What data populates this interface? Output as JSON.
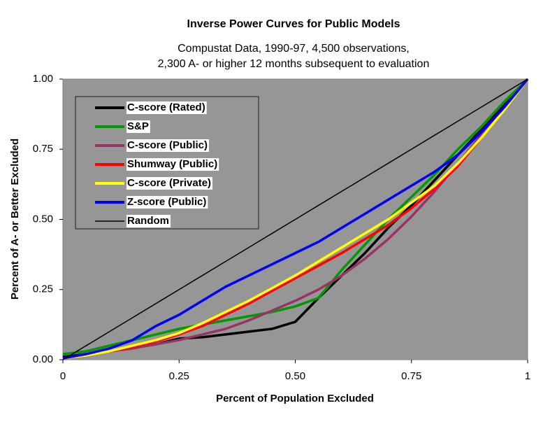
{
  "chart_data": {
    "type": "line",
    "title": "Inverse Power Curves for Public Models",
    "subtitle": [
      "Compustat Data, 1990-97, 4,500 observations,",
      "2,300 A- or higher 12 months subsequent to evaluation"
    ],
    "x_label": "Percent of Population Excluded",
    "y_label": "Percent of A- or Better Excluded",
    "x": [
      0,
      0.05,
      0.1,
      0.15,
      0.2,
      0.25,
      0.3,
      0.35,
      0.4,
      0.45,
      0.5,
      0.55,
      0.6,
      0.65,
      0.7,
      0.75,
      0.8,
      0.85,
      0.9,
      0.95,
      1
    ],
    "series": [
      {
        "name": "C-score (Rated)",
        "color": "#000000",
        "values": [
          0.01,
          0.02,
          0.03,
          0.045,
          0.055,
          0.075,
          0.08,
          0.09,
          0.1,
          0.11,
          0.135,
          0.22,
          0.3,
          0.38,
          0.47,
          0.55,
          0.64,
          0.73,
          0.82,
          0.91,
          1
        ]
      },
      {
        "name": "S&P",
        "color": "#009900",
        "values": [
          0.02,
          0.03,
          0.05,
          0.07,
          0.09,
          0.11,
          0.125,
          0.14,
          0.155,
          0.17,
          0.19,
          0.22,
          0.32,
          0.41,
          0.5,
          0.58,
          0.66,
          0.75,
          0.83,
          0.92,
          1
        ]
      },
      {
        "name": "C-score (Public)",
        "color": "#993366",
        "values": [
          0.005,
          0.015,
          0.03,
          0.04,
          0.055,
          0.07,
          0.09,
          0.11,
          0.14,
          0.175,
          0.21,
          0.25,
          0.3,
          0.36,
          0.43,
          0.51,
          0.6,
          0.7,
          0.8,
          0.9,
          1
        ]
      },
      {
        "name": "Shumway (Public)",
        "color": "#ff0000",
        "values": [
          0.005,
          0.015,
          0.03,
          0.045,
          0.065,
          0.09,
          0.12,
          0.16,
          0.2,
          0.245,
          0.29,
          0.335,
          0.38,
          0.43,
          0.48,
          0.54,
          0.61,
          0.69,
          0.79,
          0.89,
          1
        ]
      },
      {
        "name": "C-score (Private)",
        "color": "#ffff00",
        "values": [
          0.005,
          0.015,
          0.03,
          0.05,
          0.07,
          0.095,
          0.13,
          0.17,
          0.21,
          0.255,
          0.3,
          0.35,
          0.4,
          0.45,
          0.5,
          0.56,
          0.62,
          0.7,
          0.79,
          0.89,
          1
        ]
      },
      {
        "name": "Z-score (Public)",
        "color": "#0000ff",
        "values": [
          0.005,
          0.02,
          0.04,
          0.07,
          0.12,
          0.16,
          0.21,
          0.26,
          0.3,
          0.34,
          0.38,
          0.42,
          0.47,
          0.52,
          0.57,
          0.62,
          0.67,
          0.73,
          0.81,
          0.9,
          1
        ]
      },
      {
        "name": "Random",
        "color": "#000000",
        "values": [
          0,
          0.05,
          0.1,
          0.15,
          0.2,
          0.25,
          0.3,
          0.35,
          0.4,
          0.45,
          0.5,
          0.55,
          0.6,
          0.65,
          0.7,
          0.75,
          0.8,
          0.85,
          0.9,
          0.95,
          1
        ]
      }
    ],
    "xlim": [
      0,
      1
    ],
    "ylim": [
      0,
      1
    ],
    "xticks": [
      0,
      {
        "value": 0.25,
        "label": "0.25"
      },
      {
        "value": 0.5,
        "label": "0.50"
      },
      {
        "value": 0.75,
        "label": "0.75"
      },
      1
    ],
    "yticks": [
      {
        "value": 0,
        "label": "0.00"
      },
      {
        "value": 0.25,
        "label": "0.25"
      },
      {
        "value": 0.5,
        "label": "0.50"
      },
      {
        "value": 0.75,
        "label": "0.75"
      },
      {
        "value": 1,
        "label": "1.00"
      }
    ],
    "plot_background": "#969696",
    "legend": "upper left"
  }
}
